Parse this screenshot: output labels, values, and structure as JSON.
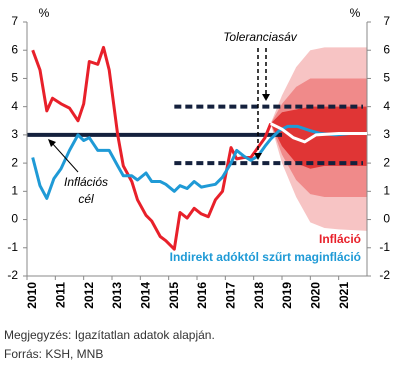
{
  "chart_data": {
    "type": "line",
    "y_unit_left": "%",
    "y_unit_right": "%",
    "xlim": [
      2010,
      2022
    ],
    "xticks": [
      2010,
      2011,
      2012,
      2013,
      2014,
      2015,
      2016,
      2017,
      2018,
      2019,
      2020,
      2021
    ],
    "ylim": [
      -2,
      7
    ],
    "yticks": [
      -2,
      -1,
      0,
      1,
      2,
      3,
      4,
      5,
      6,
      7
    ],
    "y2lim": [
      -2,
      7
    ],
    "y2ticks": [
      -2,
      -1,
      0,
      1,
      2,
      3,
      4,
      5,
      6,
      7
    ],
    "series": [
      {
        "name": "Infláció",
        "color": "#e8202a",
        "x": [
          2010.2,
          2010.46,
          2010.7,
          2010.9,
          2011.2,
          2011.5,
          2011.8,
          2012.0,
          2012.2,
          2012.5,
          2012.7,
          2012.9,
          2013.2,
          2013.4,
          2013.7,
          2013.9,
          2014.2,
          2014.4,
          2014.7,
          2014.9,
          2015.2,
          2015.4,
          2015.65,
          2015.9,
          2016.15,
          2016.4,
          2016.65,
          2016.9,
          2017.2,
          2017.4,
          2017.65,
          2017.9,
          2018.15,
          2018.4,
          2018.6
        ],
        "values": [
          6.0,
          5.3,
          3.85,
          4.3,
          4.1,
          3.95,
          3.5,
          4.1,
          5.6,
          5.5,
          6.1,
          5.3,
          3.0,
          1.9,
          1.35,
          0.7,
          0.15,
          -0.05,
          -0.6,
          -0.75,
          -1.05,
          0.25,
          0.05,
          0.4,
          0.2,
          0.1,
          0.7,
          1.0,
          2.55,
          2.15,
          2.2,
          2.2,
          2.55,
          2.9,
          3.4
        ]
      },
      {
        "name": "Indirekt adóktól szűrt maginfláció",
        "color": "#1f9ad6",
        "x": [
          2010.2,
          2010.46,
          2010.7,
          2010.95,
          2011.2,
          2011.5,
          2011.8,
          2012.0,
          2012.2,
          2012.5,
          2012.7,
          2012.9,
          2013.2,
          2013.4,
          2013.7,
          2013.9,
          2014.2,
          2014.4,
          2014.7,
          2014.9,
          2015.2,
          2015.4,
          2015.65,
          2015.9,
          2016.15,
          2016.4,
          2016.65,
          2016.9,
          2017.2,
          2017.4,
          2017.65,
          2017.9,
          2018.15,
          2018.4,
          2018.6,
          2018.9,
          2019.2,
          2019.55,
          2020.0,
          2020.35,
          2020.9,
          2021.4,
          2021.95
        ],
        "values": [
          2.2,
          1.2,
          0.75,
          1.45,
          1.8,
          2.45,
          3.0,
          2.8,
          2.9,
          2.45,
          2.45,
          2.45,
          1.9,
          1.55,
          1.55,
          1.4,
          1.65,
          1.35,
          1.35,
          1.25,
          1.0,
          1.2,
          1.1,
          1.35,
          1.15,
          1.2,
          1.25,
          1.5,
          2.0,
          2.45,
          2.25,
          2.1,
          2.25,
          2.6,
          2.85,
          3.15,
          3.3,
          3.3,
          3.15,
          3.05,
          3.0,
          3.05,
          3.05
        ]
      }
    ],
    "bands": [
      {
        "color": "#f7c4c4",
        "x": [
          2018.6,
          2019.0,
          2019.5,
          2020.0,
          2020.5,
          2021.0,
          2022.0
        ],
        "lower": [
          3.4,
          2.0,
          0.8,
          -0.1,
          -0.3,
          -0.35,
          -0.4
        ],
        "upper": [
          3.4,
          4.4,
          5.4,
          6.0,
          6.1,
          6.1,
          6.1
        ]
      },
      {
        "color": "#f08a8a",
        "x": [
          2018.6,
          2019.0,
          2019.5,
          2020.0,
          2020.5,
          2021.0,
          2022.0
        ],
        "lower": [
          3.4,
          2.3,
          1.4,
          0.9,
          0.8,
          0.8,
          0.8
        ],
        "upper": [
          3.4,
          4.1,
          4.7,
          5.0,
          5.0,
          5.0,
          5.0
        ]
      },
      {
        "color": "#e03535",
        "x": [
          2018.6,
          2019.0,
          2019.5,
          2020.0,
          2020.5,
          2021.0,
          2022.0
        ],
        "lower": [
          3.4,
          2.6,
          2.0,
          1.8,
          1.9,
          1.9,
          1.9
        ],
        "upper": [
          3.4,
          3.8,
          3.9,
          4.0,
          4.0,
          4.0,
          4.0
        ]
      }
    ],
    "center_line": {
      "color": "#ffffff",
      "x": [
        2018.6,
        2019.0,
        2019.4,
        2019.8,
        2020.2,
        2021.0,
        2022.0
      ],
      "values": [
        3.4,
        3.2,
        2.9,
        2.75,
        3.0,
        3.05,
        3.05
      ]
    },
    "target": {
      "value": 3,
      "color": "#14213d"
    },
    "tolerance": {
      "values": [
        2,
        4
      ],
      "start": 2015.2,
      "color": "#14213d"
    },
    "annotations": {
      "tolerance": "Toleranciasáv",
      "target_line1": "Inflációs",
      "target_line2": "cél"
    }
  },
  "notes": [
    "Megjegyzés: Igazítatlan adatok alapján.",
    "Forrás: KSH, MNB"
  ]
}
